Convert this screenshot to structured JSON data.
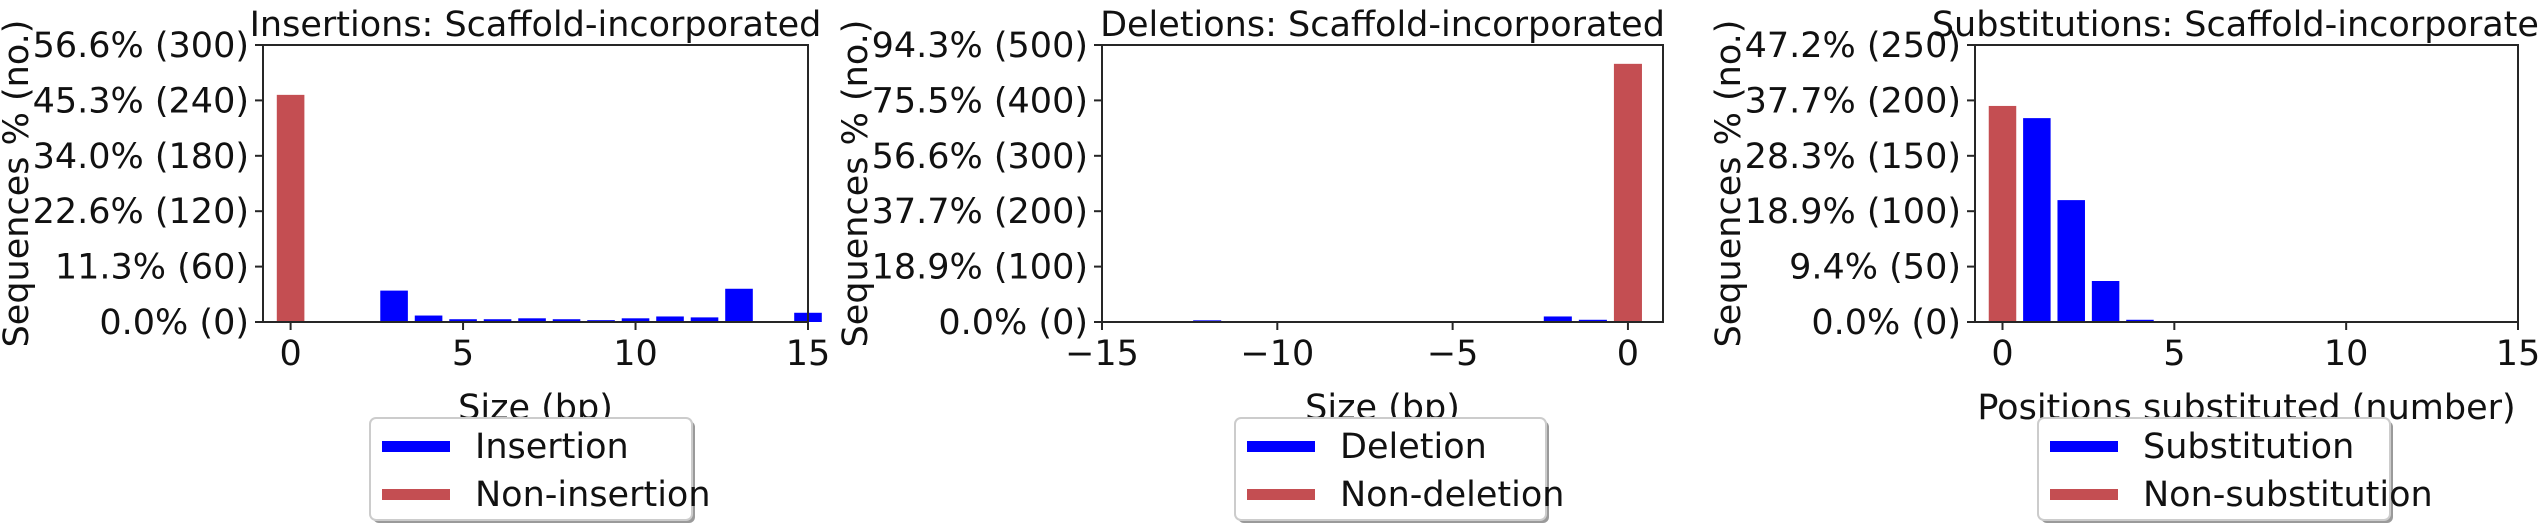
{
  "colors": {
    "non_event": "#c44e52",
    "event": "#0000ff",
    "axis": "#262626",
    "text": "#111111"
  },
  "chart_data": [
    {
      "type": "bar",
      "title": "Insertions: Scaffold-incorporated",
      "xlabel": "Size (bp)",
      "ylabel": "Sequences % (no.)",
      "xlim": [
        -0.8,
        15
      ],
      "ylim": [
        0,
        300
      ],
      "xticks": [
        0,
        5,
        10,
        15
      ],
      "xtick_labels": [
        "0",
        "5",
        "10",
        "15"
      ],
      "yticks": [
        0,
        60,
        120,
        180,
        240,
        300
      ],
      "ytick_labels": [
        "0.0% (0)",
        "11.3% (60)",
        "22.6% (120)",
        "34.0% (180)",
        "45.3% (240)",
        "56.6% (300)"
      ],
      "legend_position": "below",
      "series": [
        {
          "name": "Insertion",
          "color": "#0000ff",
          "x": [
            1,
            2,
            3,
            4,
            5,
            6,
            7,
            8,
            9,
            10,
            11,
            12,
            13,
            14,
            15
          ],
          "values": [
            1,
            1,
            34,
            7,
            3,
            3,
            4,
            3,
            2,
            4,
            6,
            5,
            36,
            0,
            10
          ]
        },
        {
          "name": "Non-insertion",
          "color": "#c44e52",
          "x": [
            0
          ],
          "values": [
            246
          ]
        }
      ]
    },
    {
      "type": "bar",
      "title": "Deletions: Scaffold-incorporated",
      "xlabel": "Size (bp)",
      "ylabel": "Sequences % (no.)",
      "xlim": [
        -15,
        1
      ],
      "ylim": [
        0,
        500
      ],
      "xticks": [
        -15,
        -10,
        -5,
        0
      ],
      "xtick_labels": [
        "−15",
        "−10",
        "−5",
        "0"
      ],
      "yticks": [
        0,
        100,
        200,
        300,
        400,
        500
      ],
      "ytick_labels": [
        "0.0% (0)",
        "18.9% (100)",
        "37.7% (200)",
        "56.6% (300)",
        "75.5% (400)",
        "94.3% (500)"
      ],
      "legend_position": "below",
      "series": [
        {
          "name": "Deletion",
          "color": "#0000ff",
          "x": [
            -12,
            -2,
            -1
          ],
          "values": [
            3,
            10,
            4
          ]
        },
        {
          "name": "Non-deletion",
          "color": "#c44e52",
          "x": [
            0
          ],
          "values": [
            466
          ]
        }
      ]
    },
    {
      "type": "bar",
      "title": "Substitutions: Scaffold-incorporated",
      "xlabel": "Positions substituted (number)",
      "ylabel": "Sequences % (no.)",
      "xlim": [
        -0.8,
        15
      ],
      "ylim": [
        0,
        250
      ],
      "xticks": [
        0,
        5,
        10,
        15
      ],
      "xtick_labels": [
        "0",
        "5",
        "10",
        "15"
      ],
      "yticks": [
        0,
        50,
        100,
        150,
        200,
        250
      ],
      "ytick_labels": [
        "0.0% (0)",
        "9.4% (50)",
        "18.9% (100)",
        "28.3% (150)",
        "37.7% (200)",
        "47.2% (250)"
      ],
      "legend_position": "below",
      "series": [
        {
          "name": "Substitution",
          "color": "#0000ff",
          "x": [
            1,
            2,
            3,
            4
          ],
          "values": [
            184,
            110,
            37,
            2
          ]
        },
        {
          "name": "Non-substitution",
          "color": "#c44e52",
          "x": [
            0
          ],
          "values": [
            195
          ]
        }
      ]
    }
  ]
}
